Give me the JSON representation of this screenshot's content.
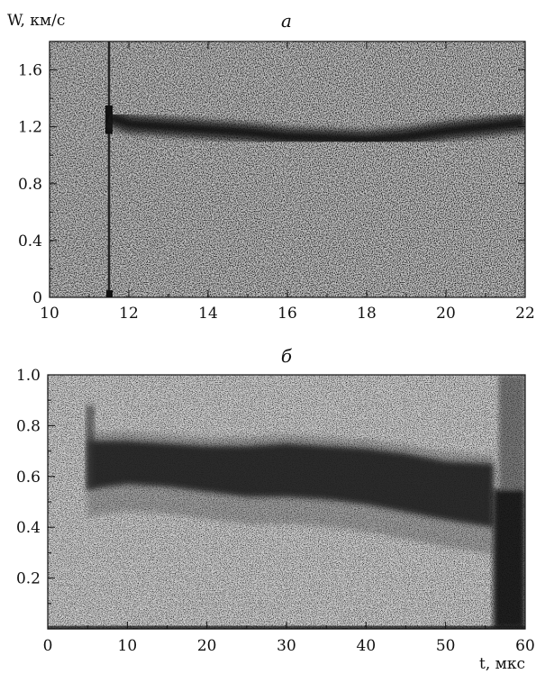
{
  "chart_data": [
    {
      "type": "heatmap",
      "panel": "а",
      "title": "а",
      "ylabel": "W, км/с",
      "xlabel": "",
      "xlim": [
        10,
        22
      ],
      "ylim": [
        0,
        1.8
      ],
      "xticks": [
        10,
        12,
        14,
        16,
        18,
        20,
        22
      ],
      "xtick_labels": [
        "10",
        "12",
        "14",
        "16",
        "18",
        "20",
        "22"
      ],
      "yticks": [
        0,
        0.4,
        0.8,
        1.2,
        1.6
      ],
      "ytick_labels": [
        "0",
        "0.4",
        "0.8",
        "1.2",
        "1.6"
      ],
      "event_line_x": 11.5,
      "band": {
        "x": [
          11.5,
          12,
          13,
          14,
          15,
          16,
          17,
          18,
          19,
          20,
          21,
          22
        ],
        "y": [
          1.27,
          1.22,
          1.2,
          1.18,
          1.16,
          1.13,
          1.12,
          1.11,
          1.13,
          1.17,
          1.2,
          1.23
        ]
      },
      "grid": false
    },
    {
      "type": "heatmap",
      "panel": "б",
      "title": "б",
      "ylabel": "",
      "xlabel": "t, мкс",
      "xlim": [
        0,
        60
      ],
      "ylim": [
        0,
        1.0
      ],
      "xticks": [
        0,
        10,
        20,
        30,
        40,
        50,
        60
      ],
      "xtick_labels": [
        "0",
        "10",
        "20",
        "30",
        "40",
        "50",
        "60"
      ],
      "yticks": [
        0.2,
        0.4,
        0.6,
        0.8,
        1.0
      ],
      "ytick_labels": [
        "0.2",
        "0.4",
        "0.6",
        "0.8",
        "1.0"
      ],
      "band": {
        "x": [
          5,
          10,
          15,
          20,
          25,
          30,
          35,
          40,
          45,
          50,
          56
        ],
        "y_top": [
          0.74,
          0.74,
          0.73,
          0.72,
          0.72,
          0.73,
          0.72,
          0.71,
          0.69,
          0.66,
          0.65
        ],
        "y_bottom": [
          0.55,
          0.57,
          0.56,
          0.54,
          0.52,
          0.52,
          0.51,
          0.49,
          0.46,
          0.43,
          0.4
        ]
      },
      "drop_x": 56,
      "grid": true
    }
  ]
}
